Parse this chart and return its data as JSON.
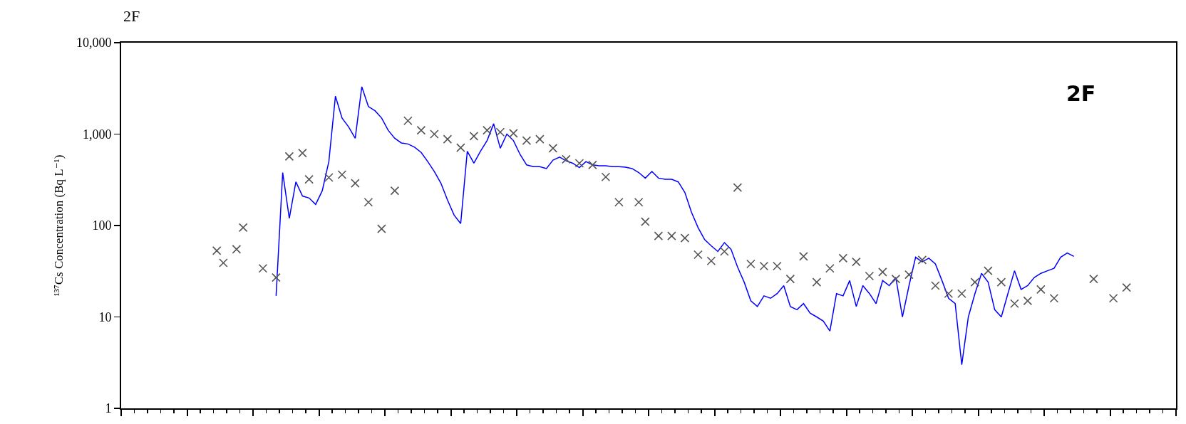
{
  "chart_data": {
    "type": "line",
    "title": "2F",
    "ylabel": "¹³⁷Cs Concentration (Bq L⁻¹)",
    "annotations": [
      "2F"
    ],
    "categories": [
      null,
      null,
      null,
      null,
      null,
      null,
      null,
      null,
      null,
      null,
      null,
      null,
      null,
      null,
      null,
      null,
      null,
      null,
      null,
      null,
      null,
      null,
      null,
      null,
      null,
      null,
      null,
      null,
      null,
      null,
      null,
      null,
      null,
      null,
      null,
      null,
      null,
      null,
      null,
      null,
      null,
      null,
      null,
      null,
      null,
      null,
      null,
      null,
      null,
      null,
      null,
      null,
      null,
      null,
      null,
      null,
      null,
      null,
      null,
      null,
      null,
      null,
      null,
      null,
      null,
      null,
      null,
      null,
      null,
      null,
      null,
      null,
      null,
      null,
      null,
      null,
      null,
      null,
      null,
      null,
      null,
      null,
      null,
      null,
      null,
      null,
      null,
      null,
      null,
      null,
      null,
      null,
      null,
      null,
      null,
      null,
      null,
      null,
      null,
      null,
      null,
      null,
      null,
      null,
      null,
      null,
      null,
      null,
      null,
      null,
      null,
      null,
      null,
      null,
      null,
      null,
      null,
      null,
      null,
      null,
      null,
      null,
      null,
      null,
      null,
      null,
      null,
      null,
      null,
      null,
      null,
      null,
      null,
      null,
      null,
      null,
      null,
      null,
      null,
      null,
      null,
      null,
      null,
      null,
      null,
      null,
      null,
      null,
      null,
      null,
      null,
      null,
      null,
      null,
      null,
      null,
      null,
      null,
      null,
      null
    ],
    "series": [
      {
        "color": "#0000ff",
        "marker": "none",
        "line_style": "solid",
        "values": [
          null,
          null,
          null,
          null,
          null,
          null,
          null,
          null,
          null,
          null,
          null,
          null,
          null,
          null,
          null,
          null,
          null,
          null,
          null,
          null,
          null,
          null,
          null,
          17,
          380,
          120,
          300,
          210,
          200,
          170,
          240,
          500,
          2600,
          1500,
          1200,
          900,
          3300,
          2000,
          1800,
          1500,
          1100,
          900,
          800,
          780,
          720,
          630,
          500,
          390,
          290,
          190,
          130,
          105,
          650,
          480,
          650,
          850,
          1300,
          700,
          1000,
          850,
          600,
          460,
          440,
          440,
          420,
          520,
          560,
          510,
          480,
          430,
          500,
          460,
          450,
          450,
          440,
          440,
          435,
          420,
          380,
          330,
          390,
          330,
          320,
          320,
          300,
          230,
          140,
          95,
          70,
          60,
          52,
          65,
          55,
          35,
          24,
          15,
          13,
          17,
          16,
          18,
          22,
          13,
          12,
          14,
          11,
          10,
          9,
          7,
          18,
          17,
          25,
          13,
          22,
          18,
          14,
          25,
          22,
          27,
          10,
          22,
          45,
          40,
          44,
          38,
          25,
          16,
          14,
          3,
          10,
          18,
          30,
          24,
          12,
          10,
          18,
          32,
          20,
          22,
          27,
          30,
          32,
          34,
          45,
          50,
          46,
          null,
          null,
          null,
          null,
          null,
          null,
          null,
          null,
          null,
          null,
          null,
          null,
          null,
          null,
          null
        ]
      },
      {
        "type": "scatter",
        "color": "#555555",
        "marker": "cross",
        "values": [
          null,
          null,
          null,
          null,
          null,
          null,
          null,
          null,
          null,
          null,
          null,
          null,
          null,
          null,
          53,
          39,
          null,
          55,
          95,
          null,
          null,
          34,
          null,
          27,
          null,
          570,
          null,
          620,
          320,
          null,
          null,
          335,
          null,
          360,
          null,
          290,
          null,
          180,
          null,
          92,
          null,
          240,
          null,
          1400,
          null,
          1100,
          null,
          1000,
          null,
          880,
          null,
          710,
          null,
          950,
          null,
          1100,
          null,
          1050,
          null,
          1020,
          null,
          850,
          null,
          880,
          null,
          700,
          null,
          530,
          null,
          480,
          null,
          460,
          null,
          340,
          null,
          180,
          null,
          null,
          180,
          110,
          null,
          77,
          null,
          77,
          null,
          73,
          null,
          48,
          null,
          41,
          null,
          52,
          null,
          260,
          null,
          38,
          null,
          36,
          null,
          36,
          null,
          26,
          null,
          46,
          null,
          24,
          null,
          34,
          null,
          44,
          null,
          40,
          null,
          28,
          null,
          31,
          null,
          26,
          null,
          29,
          null,
          42,
          null,
          22,
          null,
          18,
          null,
          18,
          null,
          24,
          null,
          32,
          null,
          24,
          null,
          14,
          null,
          15,
          null,
          20,
          null,
          16,
          null,
          null,
          null,
          null,
          null,
          26,
          null,
          null,
          16,
          null,
          21,
          null,
          null,
          null,
          null,
          null,
          null,
          null
        ]
      }
    ],
    "log": true,
    "ylim": [
      1,
      10000
    ],
    "yticks": [
      1,
      10,
      100,
      {
        "value": 1000,
        "label": "1,000"
      },
      {
        "value": 10000,
        "label": "10,000"
      }
    ],
    "tick_labels": "y"
  }
}
